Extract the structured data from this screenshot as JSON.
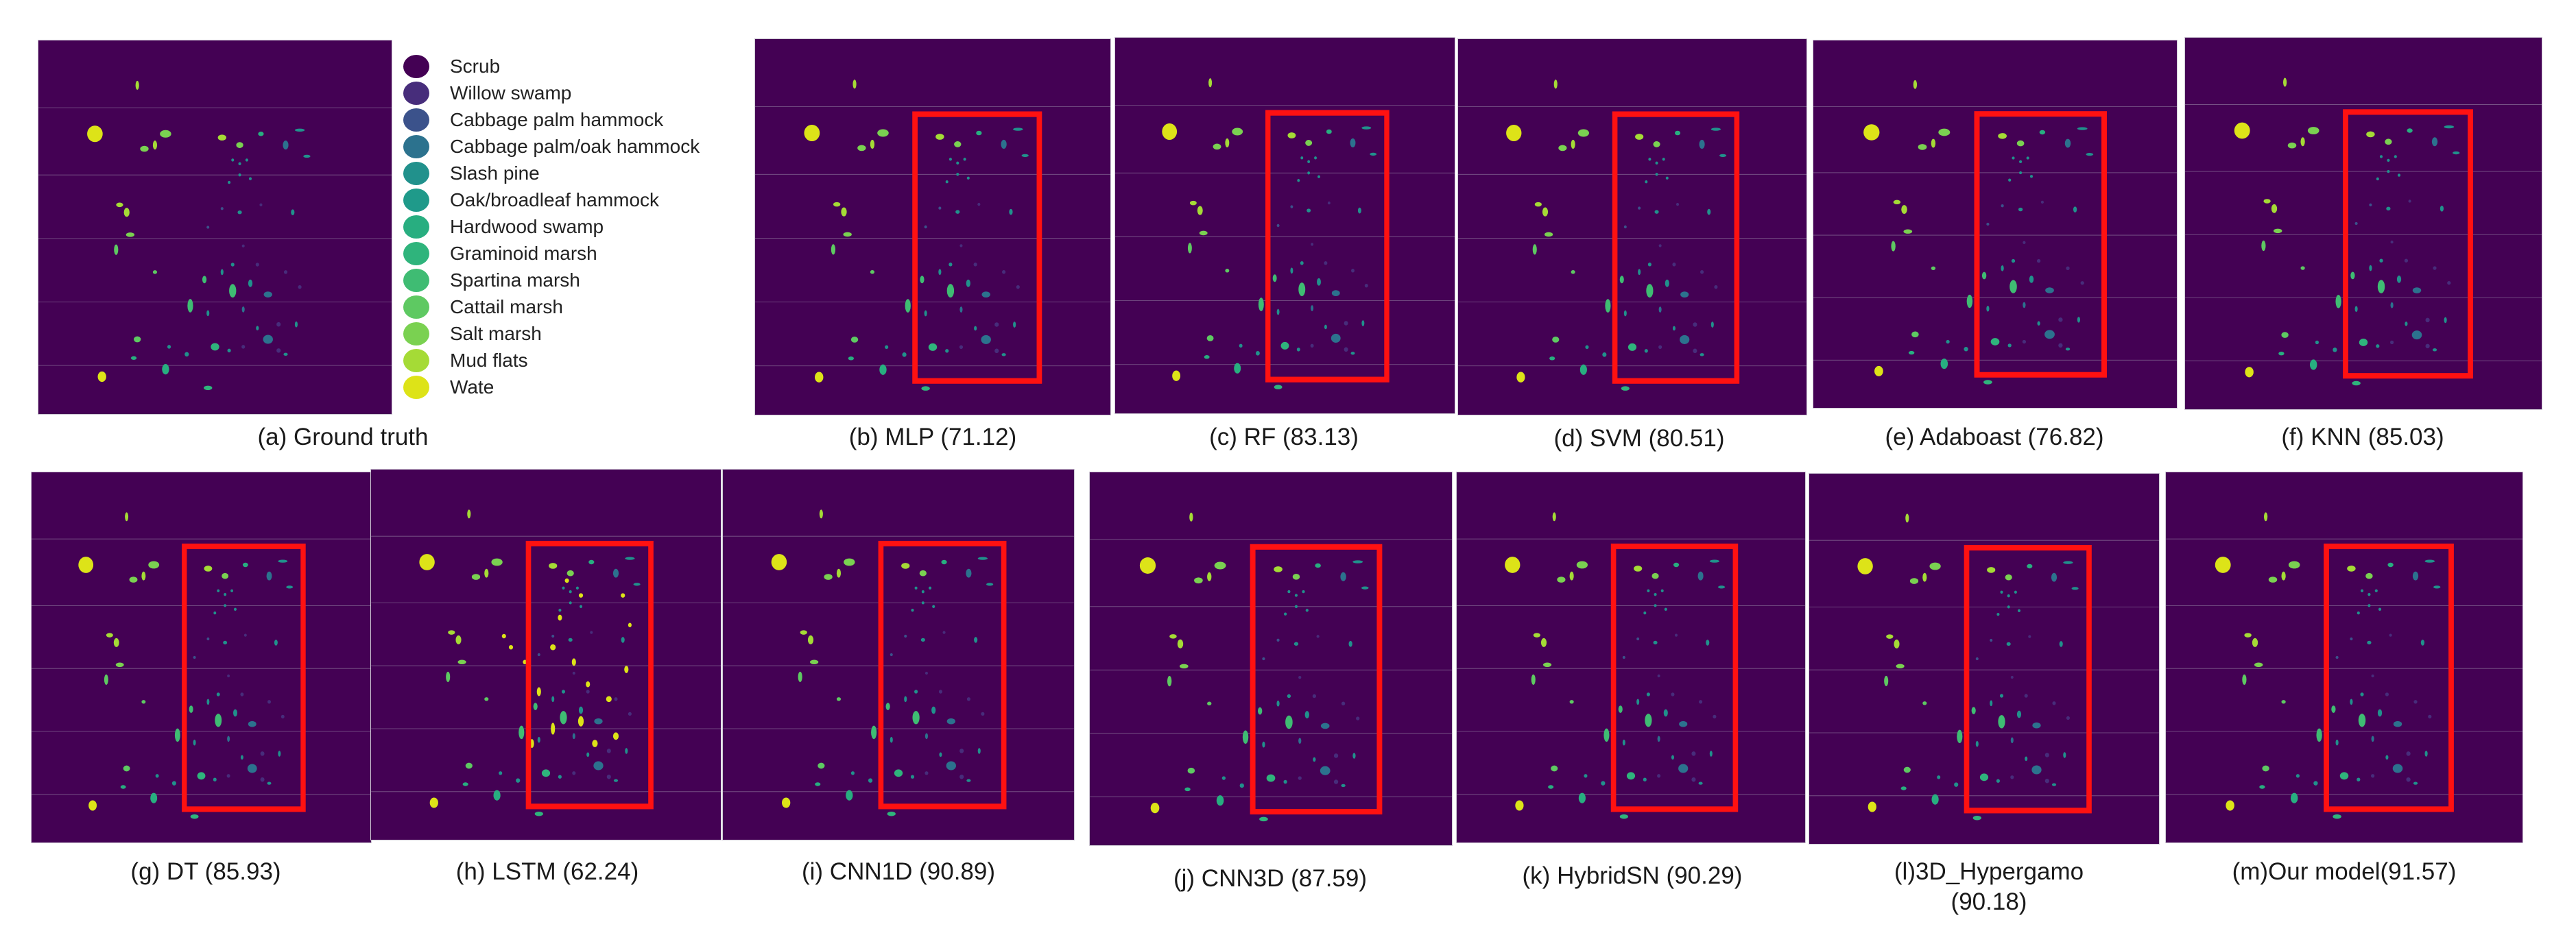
{
  "legend": {
    "items": [
      {
        "label": "Scrub",
        "color": "#440154"
      },
      {
        "label": "Willow swamp",
        "color": "#472d7b"
      },
      {
        "label": "Cabbage palm hammock",
        "color": "#3b528b"
      },
      {
        "label": "Cabbage palm/oak hammock",
        "color": "#2c728e"
      },
      {
        "label": "Slash pine",
        "color": "#21918c"
      },
      {
        "label": "Oak/broadleaf hammock",
        "color": "#1f9a8a"
      },
      {
        "label": "Hardwood swamp",
        "color": "#28ae80"
      },
      {
        "label": "Graminoid marsh",
        "color": "#2fb47c"
      },
      {
        "label": "Spartina marsh",
        "color": "#3fbc73"
      },
      {
        "label": "Cattail marsh",
        "color": "#5ec962"
      },
      {
        "label": "Salt marsh",
        "color": "#7ad151"
      },
      {
        "label": "Mud flats",
        "color": "#a5db36"
      },
      {
        "label": "Wate",
        "color": "#dde318"
      }
    ]
  },
  "panels": [
    {
      "id": "a",
      "caption": "(a) Ground truth",
      "highlight": false
    },
    {
      "id": "b",
      "caption": "(b) MLP (71.12)",
      "highlight": true
    },
    {
      "id": "c",
      "caption": "(c) RF (83.13)",
      "highlight": true
    },
    {
      "id": "d",
      "caption": "(d) SVM (80.51)",
      "highlight": true
    },
    {
      "id": "e",
      "caption": "(e)  Adaboast (76.82)",
      "highlight": true
    },
    {
      "id": "f",
      "caption": "(f) KNN (85.03)",
      "highlight": true
    },
    {
      "id": "g",
      "caption": "(g) DT (85.93)",
      "highlight": true
    },
    {
      "id": "h",
      "caption": "(h) LSTM (62.24)",
      "highlight": true
    },
    {
      "id": "i",
      "caption": "(i) CNN1D (90.89)",
      "highlight": true
    },
    {
      "id": "j",
      "caption": "(j) CNN3D (87.59)",
      "highlight": true
    },
    {
      "id": "k",
      "caption": "(k) HybridSN (90.29)",
      "highlight": true
    },
    {
      "id": "l",
      "caption_line1": "(l)3D_Hypergamo",
      "caption_line2": "(90.18)",
      "highlight": true
    },
    {
      "id": "m",
      "caption": "(m)Our model(91.57)",
      "highlight": true
    }
  ]
}
